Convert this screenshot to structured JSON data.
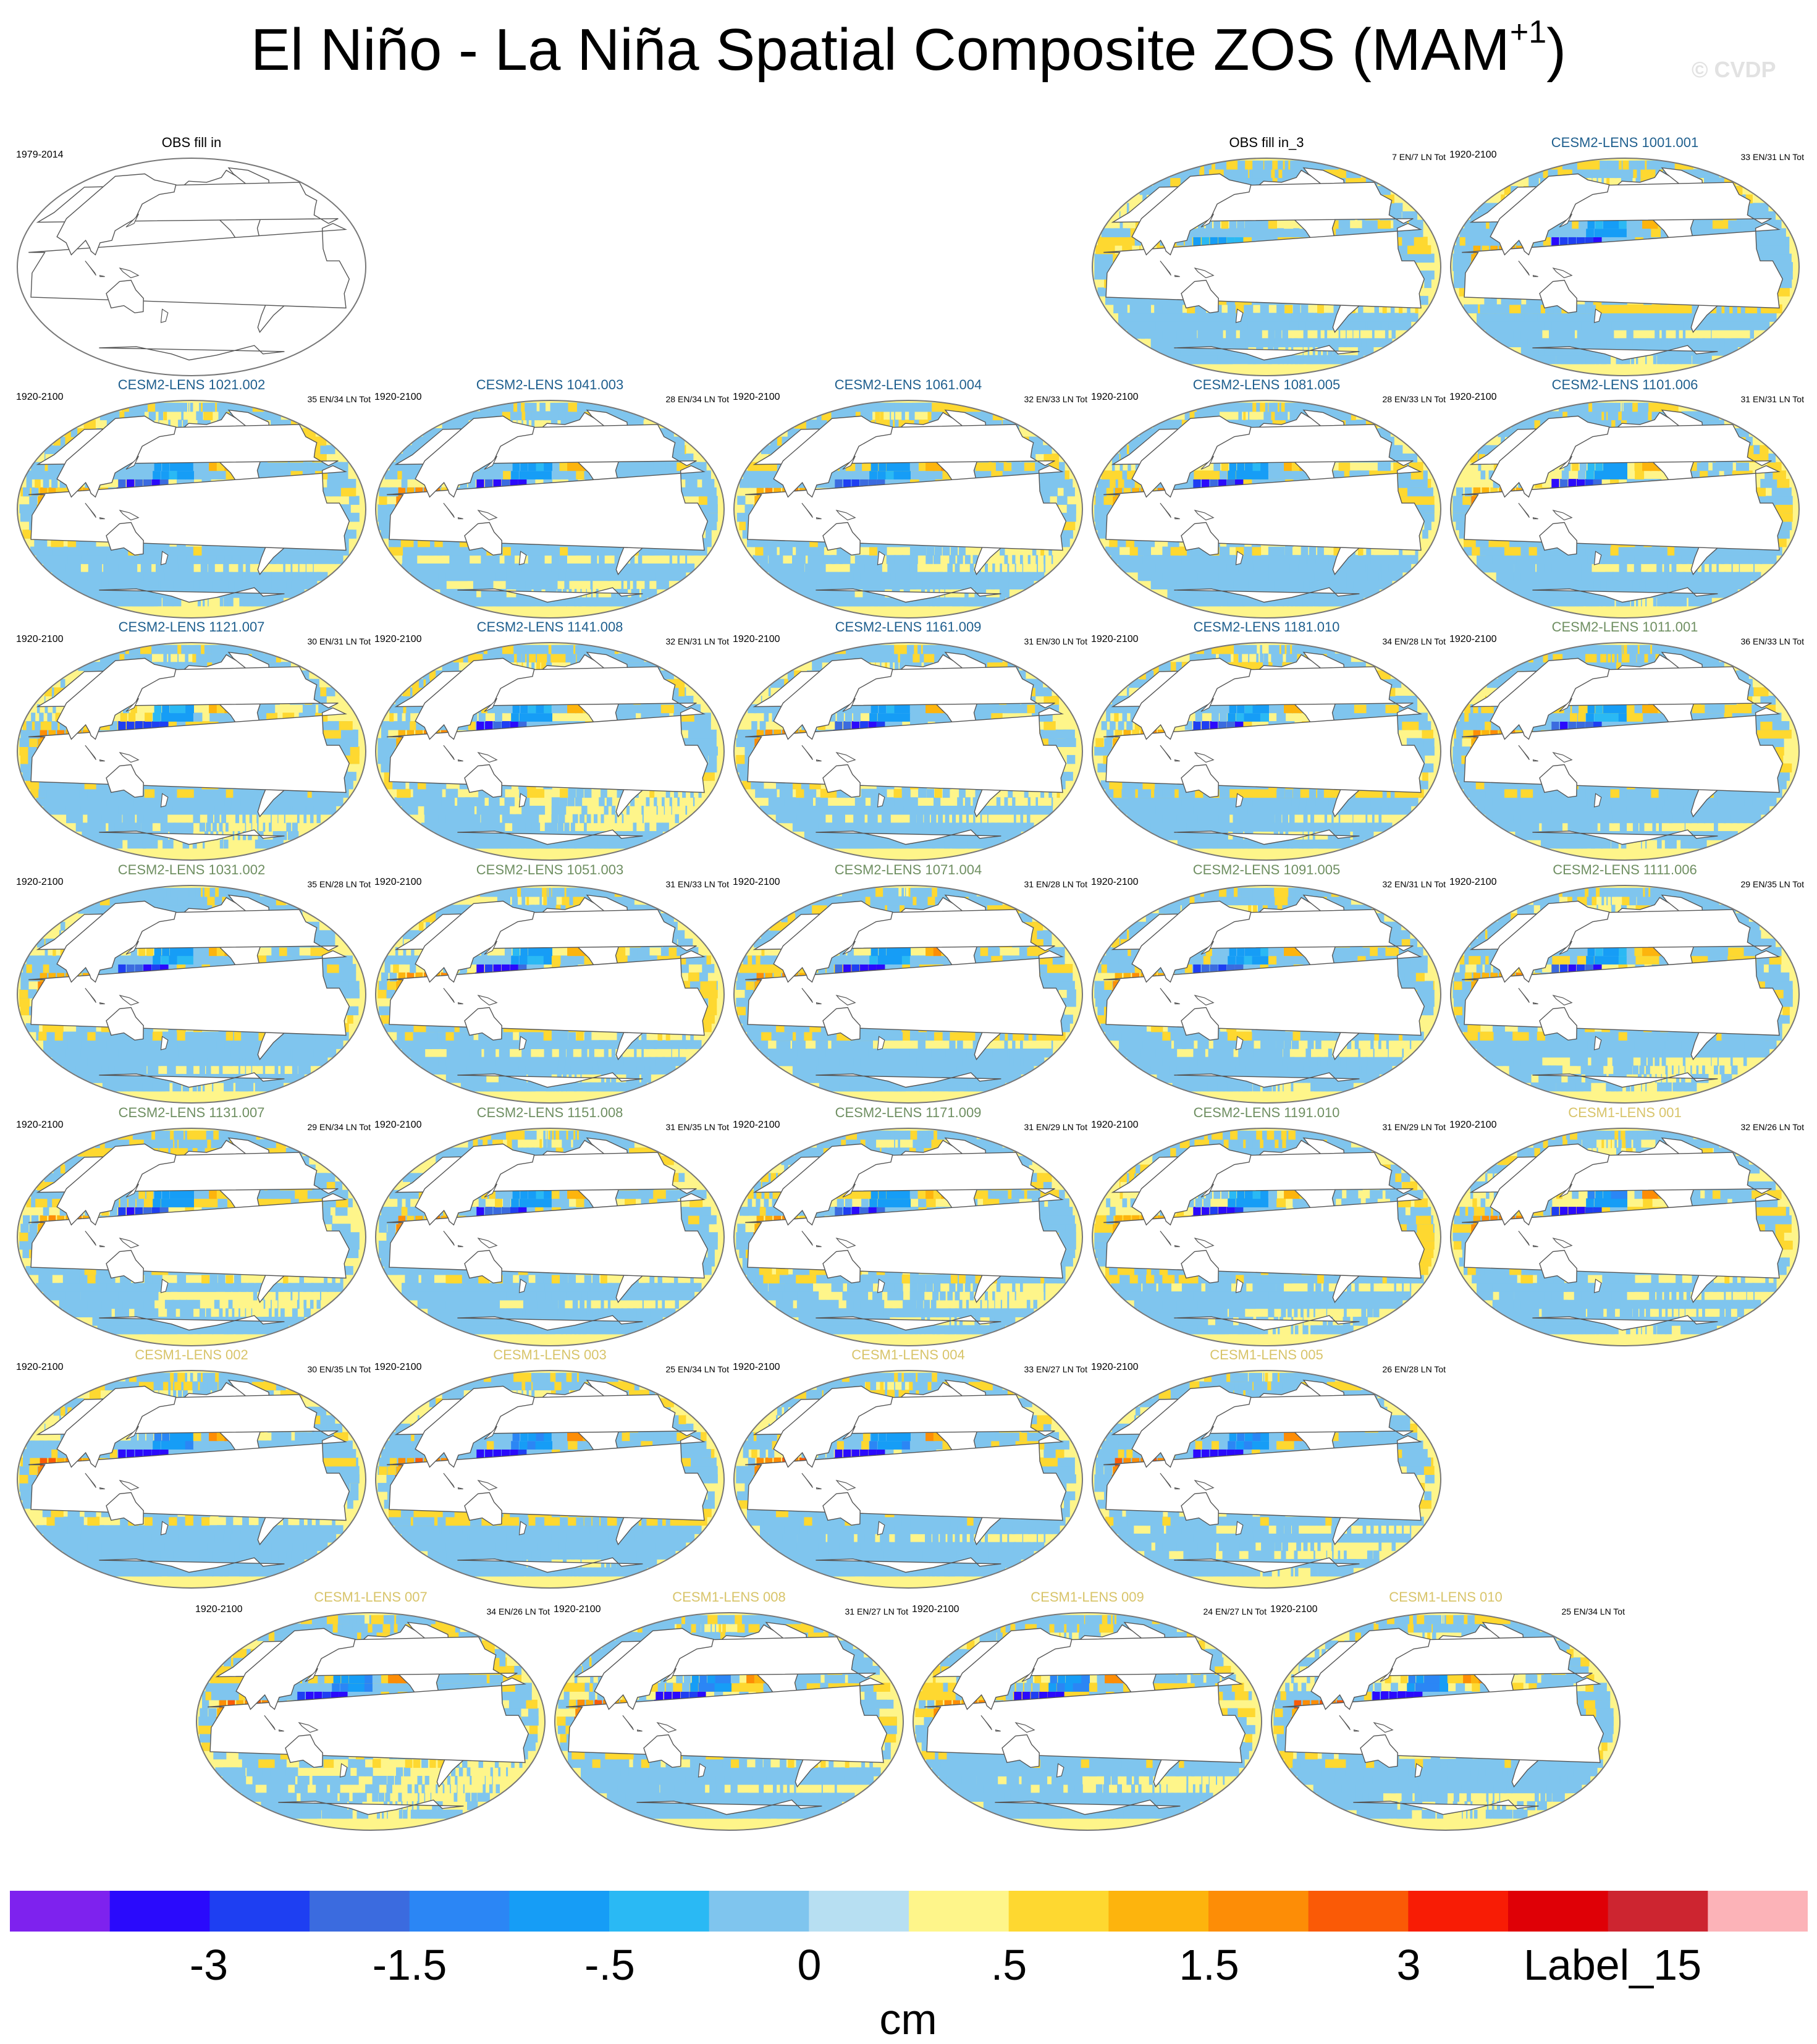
{
  "title": "El Niño - La Niña Spatial Composite ZOS (MAM",
  "title_sup": "+1",
  "title_close": ")",
  "watermark": "© CVDP",
  "units": "cm",
  "colors": {
    "obs_label": "#000000",
    "cesm2_smbb_label": "#1f5f8e",
    "cesm2_cmip6_label": "#6f8f62",
    "cesm1_label": "#d8c46a",
    "land": "#ffffff",
    "coast": "#555555"
  },
  "chart_data": {
    "type": "heatmap",
    "projection": "Robinson (Pacific-centered)",
    "colorbar": {
      "colors": [
        "#7e22ee",
        "#2a0afc",
        "#1e3ff2",
        "#3b6bdf",
        "#2b86f5",
        "#169df6",
        "#2ab9f4",
        "#7fc5ee",
        "#b7dff2",
        "#fef58a",
        "#fed830",
        "#fdb40d",
        "#fd8d06",
        "#fa5a06",
        "#f81c05",
        "#df0006",
        "#cd2530",
        "#fcb3b8"
      ],
      "tick_labels": [
        "-3",
        "-1.5",
        "-.5",
        "0",
        ".5",
        "1.5",
        "3",
        "Label_15"
      ]
    },
    "panels": [
      {
        "name": "OBS fill in",
        "period": "1979-2014",
        "counts": "",
        "group": "obs",
        "data": false
      },
      {
        "name": "OBS fill in_3",
        "period": "",
        "counts": "7 EN/7 LN Tot",
        "group": "obs",
        "data": true,
        "strength": 0.45
      },
      {
        "name": "CESM2-LENS 1001.001",
        "period": "1920-2100",
        "counts": "33 EN/31 LN Tot",
        "group": "c2a",
        "data": true,
        "strength": 1.0
      },
      {
        "name": "CESM2-LENS 1021.002",
        "period": "1920-2100",
        "counts": "35 EN/34 LN Tot",
        "group": "c2a",
        "data": true,
        "strength": 1.0
      },
      {
        "name": "CESM2-LENS 1041.003",
        "period": "1920-2100",
        "counts": "28 EN/34 LN Tot",
        "group": "c2a",
        "data": true,
        "strength": 1.0
      },
      {
        "name": "CESM2-LENS 1061.004",
        "period": "1920-2100",
        "counts": "32 EN/33 LN Tot",
        "group": "c2a",
        "data": true,
        "strength": 1.0
      },
      {
        "name": "CESM2-LENS 1081.005",
        "period": "1920-2100",
        "counts": "28 EN/33 LN Tot",
        "group": "c2a",
        "data": true,
        "strength": 1.0
      },
      {
        "name": "CESM2-LENS 1101.006",
        "period": "1920-2100",
        "counts": "31 EN/31 LN Tot",
        "group": "c2a",
        "data": true,
        "strength": 1.0
      },
      {
        "name": "CESM2-LENS 1121.007",
        "period": "1920-2100",
        "counts": "30 EN/31 LN Tot",
        "group": "c2a",
        "data": true,
        "strength": 1.0
      },
      {
        "name": "CESM2-LENS 1141.008",
        "period": "1920-2100",
        "counts": "32 EN/31 LN Tot",
        "group": "c2a",
        "data": true,
        "strength": 1.0
      },
      {
        "name": "CESM2-LENS 1161.009",
        "period": "1920-2100",
        "counts": "31 EN/30 LN Tot",
        "group": "c2a",
        "data": true,
        "strength": 1.0
      },
      {
        "name": "CESM2-LENS 1181.010",
        "period": "1920-2100",
        "counts": "34 EN/28 LN Tot",
        "group": "c2a",
        "data": true,
        "strength": 1.0
      },
      {
        "name": "CESM2-LENS 1011.001",
        "period": "1920-2100",
        "counts": "36 EN/33 LN Tot",
        "group": "c2b",
        "data": true,
        "strength": 1.0
      },
      {
        "name": "CESM2-LENS 1031.002",
        "period": "1920-2100",
        "counts": "35 EN/28 LN Tot",
        "group": "c2b",
        "data": true,
        "strength": 1.0
      },
      {
        "name": "CESM2-LENS 1051.003",
        "period": "1920-2100",
        "counts": "31 EN/33 LN Tot",
        "group": "c2b",
        "data": true,
        "strength": 1.0
      },
      {
        "name": "CESM2-LENS 1071.004",
        "period": "1920-2100",
        "counts": "31 EN/28 LN Tot",
        "group": "c2b",
        "data": true,
        "strength": 1.0
      },
      {
        "name": "CESM2-LENS 1091.005",
        "period": "1920-2100",
        "counts": "32 EN/31 LN Tot",
        "group": "c2b",
        "data": true,
        "strength": 1.0
      },
      {
        "name": "CESM2-LENS 1111.006",
        "period": "1920-2100",
        "counts": "29 EN/35 LN Tot",
        "group": "c2b",
        "data": true,
        "strength": 1.0
      },
      {
        "name": "CESM2-LENS 1131.007",
        "period": "1920-2100",
        "counts": "29 EN/34 LN Tot",
        "group": "c2b",
        "data": true,
        "strength": 1.0
      },
      {
        "name": "CESM2-LENS 1151.008",
        "period": "1920-2100",
        "counts": "31 EN/35 LN Tot",
        "group": "c2b",
        "data": true,
        "strength": 1.0
      },
      {
        "name": "CESM2-LENS 1171.009",
        "period": "1920-2100",
        "counts": "31 EN/29 LN Tot",
        "group": "c2b",
        "data": true,
        "strength": 1.0
      },
      {
        "name": "CESM2-LENS 1191.010",
        "period": "1920-2100",
        "counts": "31 EN/29 LN Tot",
        "group": "c2b",
        "data": true,
        "strength": 1.0
      },
      {
        "name": "CESM1-LENS 001",
        "period": "1920-2100",
        "counts": "32 EN/26 LN Tot",
        "group": "c1",
        "data": true,
        "strength": 1.2
      },
      {
        "name": "CESM1-LENS 002",
        "period": "1920-2100",
        "counts": "30 EN/35 LN Tot",
        "group": "c1",
        "data": true,
        "strength": 1.2
      },
      {
        "name": "CESM1-LENS 003",
        "period": "1920-2100",
        "counts": "25 EN/34 LN Tot",
        "group": "c1",
        "data": true,
        "strength": 1.2
      },
      {
        "name": "CESM1-LENS 004",
        "period": "1920-2100",
        "counts": "33 EN/27 LN Tot",
        "group": "c1",
        "data": true,
        "strength": 1.2
      },
      {
        "name": "CESM1-LENS 005",
        "period": "1920-2100",
        "counts": "26 EN/28 LN Tot",
        "group": "c1",
        "data": true,
        "strength": 1.2
      },
      {
        "name": "CESM1-LENS 007",
        "period": "1920-2100",
        "counts": "34 EN/26 LN Tot",
        "group": "c1",
        "data": true,
        "strength": 1.2
      },
      {
        "name": "CESM1-LENS 008",
        "period": "1920-2100",
        "counts": "31 EN/27 LN Tot",
        "group": "c1",
        "data": true,
        "strength": 1.2
      },
      {
        "name": "CESM1-LENS 009",
        "period": "1920-2100",
        "counts": "24 EN/27 LN Tot",
        "group": "c1",
        "data": true,
        "strength": 1.2
      },
      {
        "name": "CESM1-LENS 010",
        "period": "1920-2100",
        "counts": "25 EN/34 LN Tot",
        "group": "c1",
        "data": true,
        "strength": 1.2
      }
    ]
  }
}
